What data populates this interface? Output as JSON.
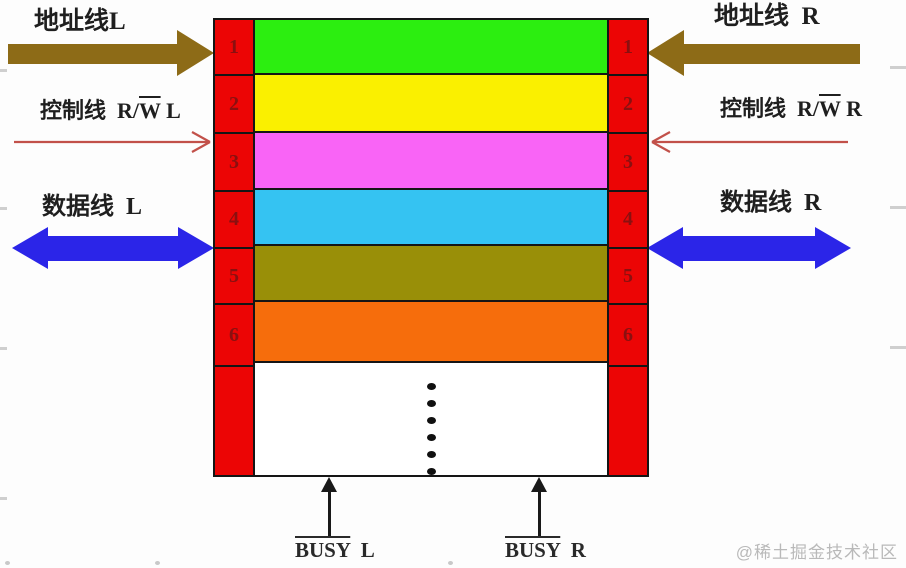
{
  "labels": {
    "address_left": "地址线L",
    "address_right": "地址线  R",
    "control_left": {
      "pre": "控制线  R/",
      "over": "W",
      "post": " L"
    },
    "control_right": {
      "pre": "控制线  R/",
      "over": "W",
      "post": " R"
    },
    "data_left": "数据线  L",
    "data_right": "数据线  R",
    "busy_left": {
      "over": "BUSY",
      "post": "  L"
    },
    "busy_right": {
      "over": "BUSY",
      "post": "  R"
    }
  },
  "memory": {
    "rows": [
      {
        "index": "1",
        "color": "#2cee10"
      },
      {
        "index": "2",
        "color": "#faf000"
      },
      {
        "index": "3",
        "color": "#f964f6"
      },
      {
        "index": "4",
        "color": "#35c3f2"
      },
      {
        "index": "5",
        "color": "#998f08"
      },
      {
        "index": "6",
        "color": "#f66d0c"
      }
    ],
    "ellipsis_dots": 6,
    "cell_color": "#ec0505",
    "index_color": "#8a1010"
  },
  "colors": {
    "address_arrow": "#8d6b17",
    "control_arrow": "#c2514a",
    "data_arrow": "#2b25e8"
  },
  "watermark": "@稀土掘金技术社区"
}
